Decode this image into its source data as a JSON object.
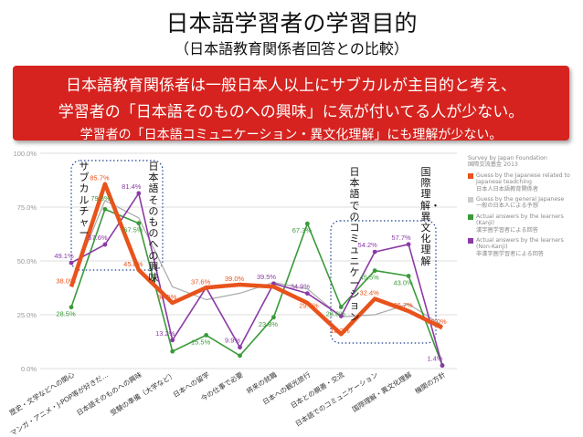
{
  "slide": {
    "title": "日本語学習者の学習目的",
    "subtitle": "（日本語教育関係者回答との比較）"
  },
  "banner": {
    "line1": "日本語教育関係者は一般日本人以上にサブカルが主目的と考え、",
    "line2": "学習者の「日本語そのものへの興味」に気が付いてる人が少ない。",
    "line3": "学習者の「日本語コミュニケーション・異文化理解」にも理解が少ない。"
  },
  "callouts": {
    "subculture": "サブカルチャー",
    "japanese_interest": "日本語そのものへの興味",
    "communication": "日本語でのコミュニケーション",
    "intercultural": "国際理解・異文化理解"
  },
  "colors": {
    "banner": "#d6231f",
    "teachers": "#e8531c",
    "general": "#aaaaaa",
    "kanji": "#3a9a3a",
    "nonkanji": "#8b3aa6"
  },
  "chart_data": {
    "type": "line",
    "source_lines": [
      "Survey by Japan Foundation",
      "国際交流基金 2013"
    ],
    "ylim": [
      0,
      100
    ],
    "yticks": [
      "0.0%",
      "25.0%",
      "50.0%",
      "75.0%",
      "100.0%"
    ],
    "categories": [
      "歴史・文学などへの関心",
      "マンガ・アニメ・J-POP等が好きだ…",
      "日本語そのものへの興味",
      "受験の準備（大学など）",
      "日本への留学",
      "今の仕事で必要",
      "将来の就職",
      "日本への観光旅行",
      "日本との親善・交流",
      "日本語でのコミュニケーション",
      "国際理解・異文化理解",
      "機関の方針"
    ],
    "series": [
      {
        "name": "Guess by the Japanese related to Japanese teadching",
        "name_ja": "日本人日本語教育関係者",
        "key": "teachers",
        "values": [
          38.0,
          85.7,
          45.8,
          30.5,
          37.6,
          39.0,
          38.0,
          30.5,
          16.0,
          32.4,
          26.7,
          19.0
        ],
        "labels": [
          "38.0%",
          "85.7%",
          "45.8%",
          "30.5%",
          "37.6%",
          "39.0%",
          "",
          "",
          "",
          "32.4%",
          "26.7%",
          "19.0%"
        ]
      },
      {
        "name": "Guess by the general Japanese",
        "name_ja": "一般の日本人による予想",
        "key": "general",
        "values": [
          40.0,
          78.0,
          70.0,
          38.0,
          32.0,
          35.0,
          40.0,
          37.0,
          24.0,
          25.0,
          30.0,
          20.0
        ],
        "labels": [
          "",
          "",
          "",
          "",
          "",
          "",
          "",
          "",
          "",
          "",
          "",
          ""
        ]
      },
      {
        "name": "Actual answers by the learners (Kanji)",
        "name_ja": "漢字圏学習者による回答",
        "key": "kanji",
        "values": [
          28.5,
          74.0,
          67.5,
          8.0,
          15.5,
          6.0,
          23.8,
          67.3,
          28.6,
          45.5,
          43.0,
          1.5
        ],
        "labels": [
          "28.5%",
          "",
          "67.5%",
          "",
          "15.5%",
          "",
          "23.8%",
          "67.3%",
          "28.6%",
          "45.5%",
          "43.0%",
          ""
        ]
      },
      {
        "name": "Actual answers by the learners (Non-Kanji)",
        "name_ja": "非漢字圏学習者による回答",
        "key": "nonkanji",
        "values": [
          49.1,
          57.6,
          81.4,
          13.2,
          37.6,
          9.9,
          39.5,
          34.9,
          24.4,
          54.2,
          57.7,
          1.4
        ],
        "labels": [
          "49.1%",
          "57.6%",
          "81.4%",
          "13.2%",
          "",
          "9.9%",
          "39.5%",
          "34.9%",
          "",
          "54.2%",
          "57.7%",
          "1.4%"
        ]
      }
    ],
    "extra_labels": [
      "79.3%",
      "29.5%",
      "18.2%"
    ],
    "grid": true
  }
}
